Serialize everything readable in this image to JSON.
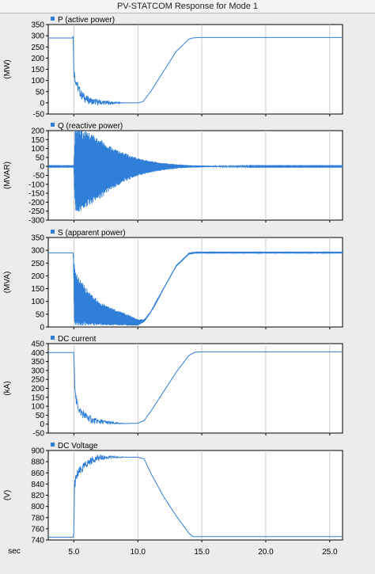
{
  "window": {
    "title": "PV-STATCOM Response for Mode 1"
  },
  "colors": {
    "trace": "#2f7fd8",
    "axis": "#000000",
    "grid": "#bfbfbf",
    "plot_bg": "#ffffff",
    "panel_bg": "#ececec",
    "legend_marker": "#2f7fd8"
  },
  "chart_data": [
    {
      "type": "line",
      "legend": "P (active power)",
      "ylabel": "(MW)",
      "ylim": [
        -50,
        350
      ],
      "yticks": [
        -50,
        0,
        50,
        100,
        150,
        200,
        250,
        300,
        350
      ],
      "xlim": [
        3,
        26
      ],
      "series": [
        {
          "name": "P (active power)",
          "x": [
            3.0,
            4.9,
            4.95,
            5.0,
            5.1,
            5.3,
            5.6,
            6.0,
            6.5,
            7.0,
            8.0,
            9.0,
            10.0,
            10.4,
            11.0,
            12.0,
            13.0,
            14.0,
            14.3,
            14.8,
            16.0,
            18.0,
            20.0,
            22.0,
            24.0,
            26.0
          ],
          "y": [
            290,
            290,
            300,
            140,
            110,
            70,
            35,
            15,
            5,
            2,
            0,
            0,
            0,
            5,
            50,
            140,
            230,
            285,
            290,
            292,
            292,
            292,
            292,
            292,
            292,
            292
          ]
        }
      ]
    },
    {
      "type": "line",
      "legend": "Q (reactive power)",
      "ylabel": "(MVAR)",
      "ylim": [
        -300,
        200
      ],
      "yticks": [
        -300,
        -250,
        -200,
        -150,
        -100,
        -50,
        0,
        50,
        100,
        150,
        200
      ],
      "xlim": [
        3,
        26
      ],
      "series": [
        {
          "name": "Q (reactive power)",
          "x": [
            3.0,
            5.0,
            5.1,
            5.3,
            6.0,
            7.0,
            8.0,
            9.0,
            10.0,
            11.0,
            12.0,
            13.0,
            14.0,
            16.0,
            20.0,
            26.0
          ],
          "y_center": [
            0,
            0,
            -20,
            -25,
            -20,
            -15,
            -10,
            -5,
            -3,
            -2,
            -1,
            0,
            0,
            0,
            0,
            0
          ],
          "y_amplitude": [
            2,
            2,
            235,
            235,
            215,
            170,
            115,
            80,
            50,
            32,
            20,
            12,
            7,
            3,
            2,
            2
          ]
        }
      ]
    },
    {
      "type": "line",
      "legend": "S (apparent power)",
      "ylabel": "(MVA)",
      "ylim": [
        0,
        350
      ],
      "yticks": [
        0,
        50,
        100,
        150,
        200,
        250,
        300,
        350
      ],
      "xlim": [
        3,
        26
      ],
      "series": [
        {
          "name": "S (apparent power)",
          "x": [
            3.0,
            4.95,
            5.05,
            5.3,
            6.0,
            7.0,
            8.0,
            9.0,
            10.0,
            10.5,
            11.0,
            12.0,
            13.0,
            14.0,
            14.5,
            16.0,
            20.0,
            26.0
          ],
          "y_upper": [
            290,
            290,
            240,
            200,
            150,
            100,
            75,
            55,
            30,
            30,
            60,
            150,
            240,
            288,
            292,
            292,
            292,
            292
          ],
          "y_lower": [
            290,
            290,
            5,
            5,
            5,
            5,
            5,
            5,
            5,
            20,
            55,
            148,
            238,
            286,
            290,
            290,
            290,
            290
          ]
        }
      ]
    },
    {
      "type": "line",
      "legend": "DC current",
      "ylabel": "(kA)",
      "ylim": [
        -50,
        450
      ],
      "yticks": [
        -50,
        0,
        50,
        100,
        150,
        200,
        250,
        300,
        350,
        400,
        450
      ],
      "xlim": [
        3,
        26
      ],
      "series": [
        {
          "name": "DC current",
          "x": [
            3.0,
            5.0,
            5.05,
            5.2,
            5.5,
            6.0,
            6.5,
            7.0,
            8.0,
            9.0,
            10.0,
            10.5,
            11.0,
            12.0,
            13.0,
            14.0,
            14.5,
            15.0,
            20.0,
            26.0
          ],
          "y": [
            400,
            400,
            250,
            120,
            70,
            40,
            20,
            15,
            5,
            3,
            5,
            20,
            70,
            180,
            290,
            385,
            402,
            404,
            404,
            404
          ]
        }
      ]
    },
    {
      "type": "line",
      "legend": "DC Voltage",
      "ylabel": "(V)",
      "ylim": [
        740,
        900
      ],
      "yticks": [
        740,
        760,
        780,
        800,
        820,
        840,
        860,
        880,
        900
      ],
      "xlim": [
        3,
        26
      ],
      "xticks": [
        5,
        10,
        15,
        20,
        25
      ],
      "xticklabels": [
        "5.0",
        "10.0",
        "15.0",
        "20.0",
        "25.0"
      ],
      "xlabel": "sec",
      "series": [
        {
          "name": "DC Voltage",
          "x": [
            3.0,
            4.95,
            5.0,
            5.05,
            5.3,
            5.6,
            6.0,
            6.5,
            7.0,
            8.0,
            9.0,
            10.0,
            10.5,
            11.0,
            12.0,
            13.0,
            14.0,
            14.3,
            15.0,
            20.0,
            26.0
          ],
          "y": [
            745,
            745,
            755,
            840,
            858,
            866,
            876,
            884,
            887,
            888,
            888,
            888,
            885,
            860,
            818,
            783,
            752,
            746,
            746,
            746,
            746
          ]
        }
      ]
    }
  ]
}
